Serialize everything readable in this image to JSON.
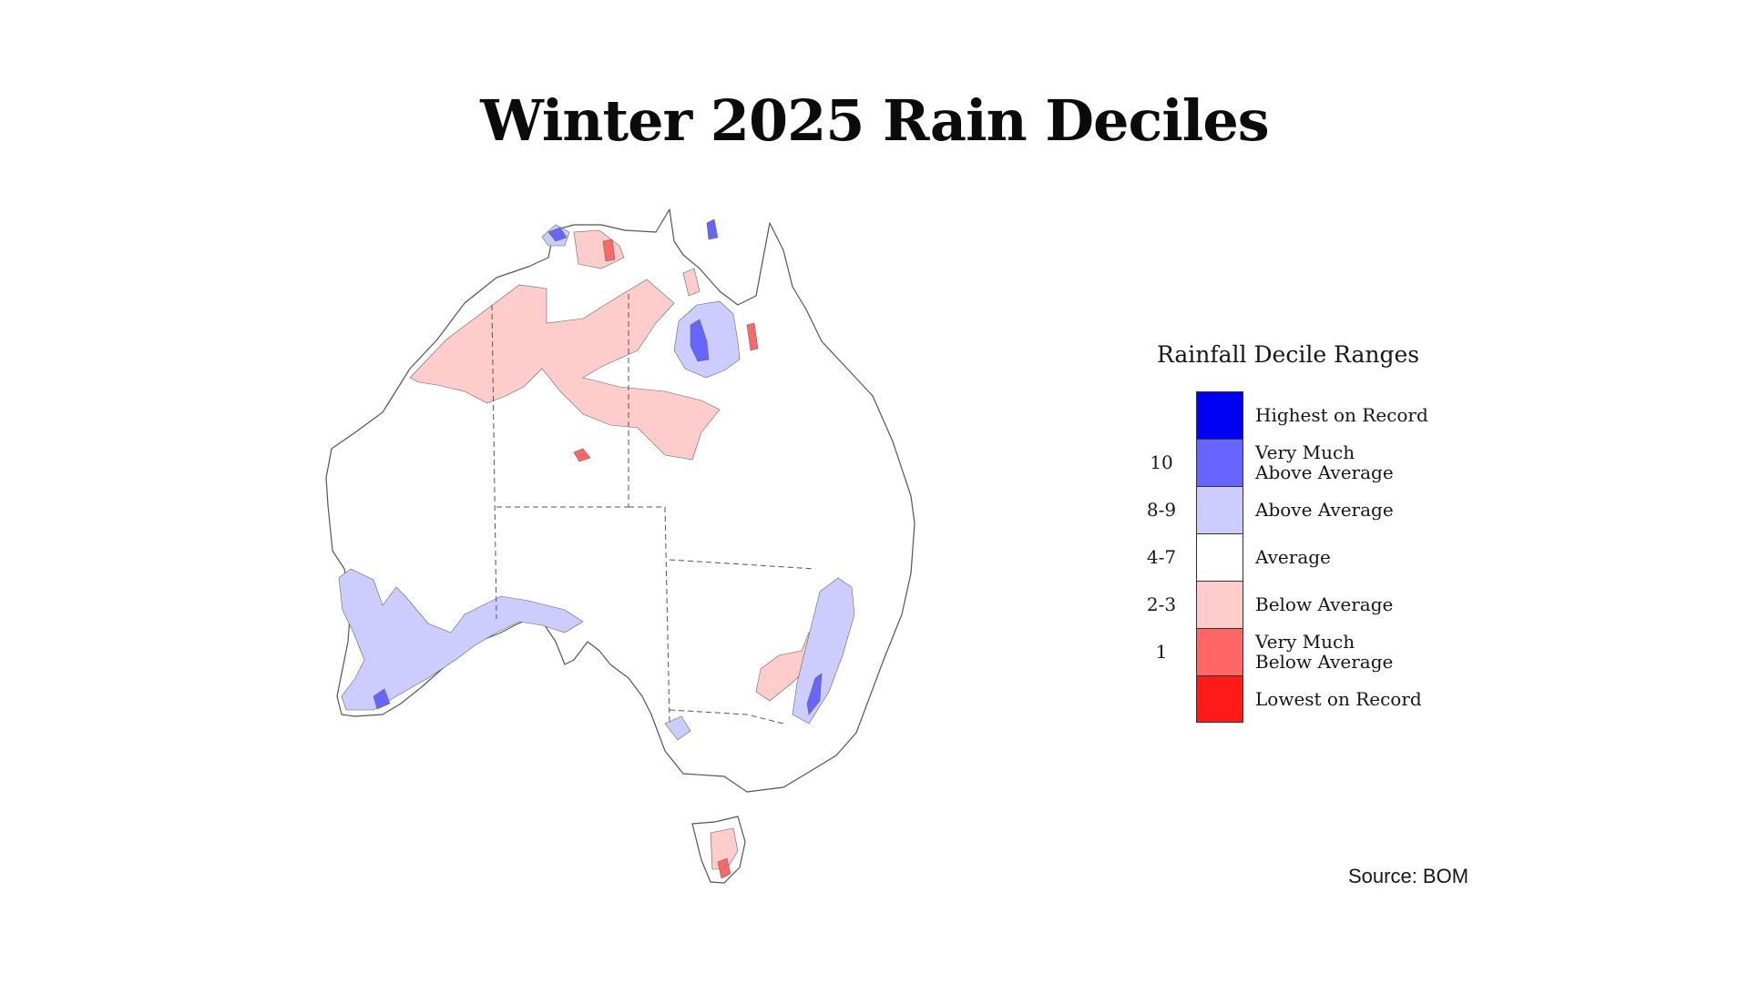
{
  "title": "Winter 2025 Rain Deciles",
  "legend": {
    "title": "Rainfall Decile Ranges",
    "items": [
      {
        "decile": "",
        "label_lines": [
          "Highest on Record"
        ],
        "color": "#0000f5"
      },
      {
        "decile": "10",
        "label_lines": [
          "Very Much",
          "Above Average"
        ],
        "color": "#6666ff"
      },
      {
        "decile": "8-9",
        "label_lines": [
          "Above Average"
        ],
        "color": "#ccccff"
      },
      {
        "decile": "4-7",
        "label_lines": [
          "Average"
        ],
        "color": "#ffffff"
      },
      {
        "decile": "2-3",
        "label_lines": [
          "Below Average"
        ],
        "color": "#ffcccc"
      },
      {
        "decile": "1",
        "label_lines": [
          "Very Much",
          "Below Average"
        ],
        "color": "#ff6666"
      },
      {
        "decile": "",
        "label_lines": [
          "Lowest on Record"
        ],
        "color": "#ff1a1a"
      }
    ]
  },
  "source": "Source: BOM",
  "map": {
    "region": "Australia",
    "colors": {
      "land": "#ffffff",
      "outline": "#555555",
      "border": "#555555",
      "highest": "#0000f5",
      "very_much_above": "#6666ff",
      "above": "#ccccff",
      "below": "#ffcccc",
      "very_much_below": "#ff6666"
    }
  }
}
